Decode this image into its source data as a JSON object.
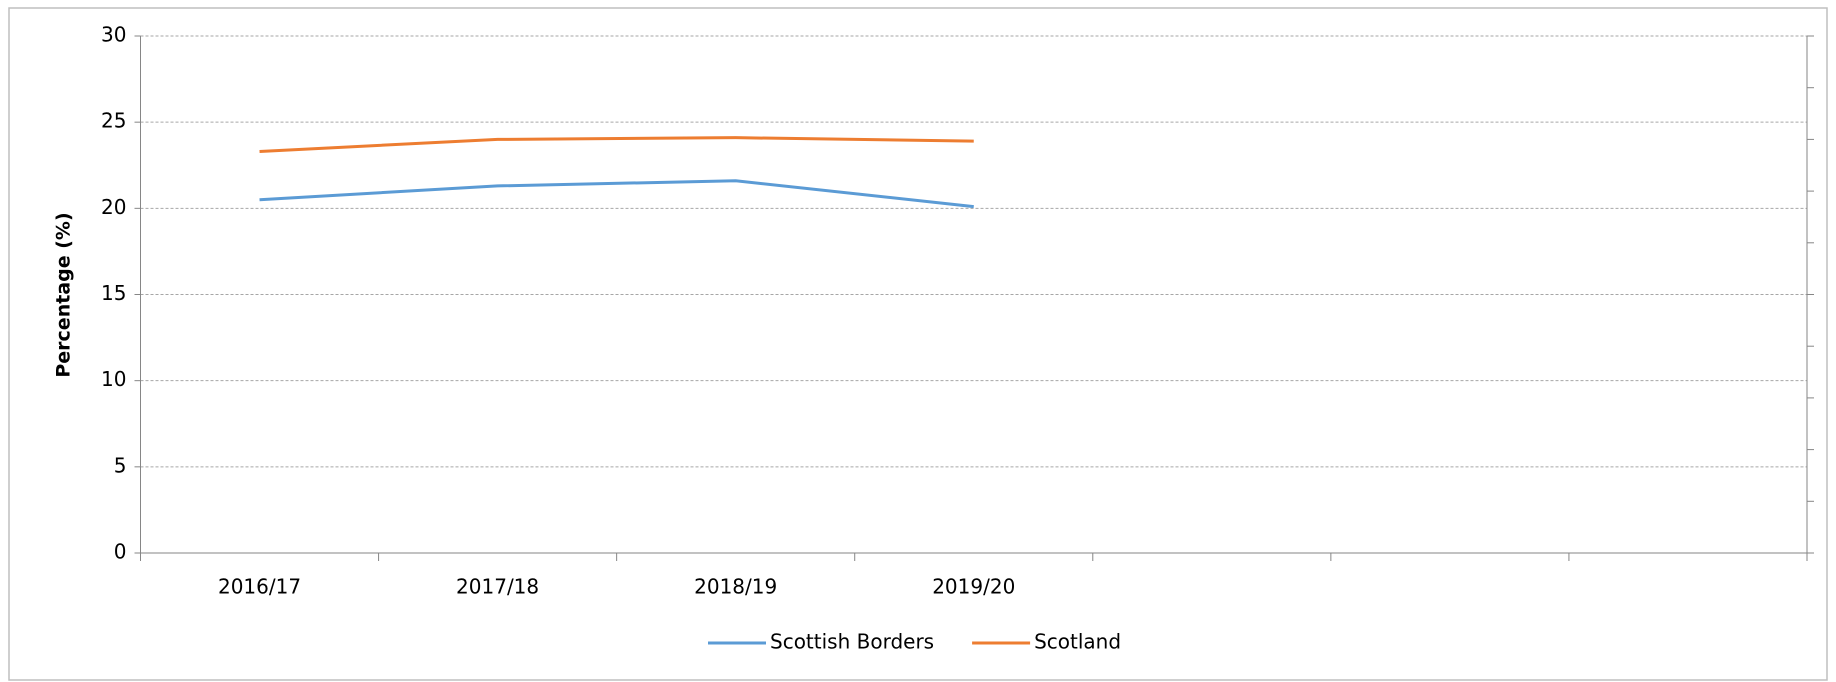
{
  "chart_data": {
    "type": "line",
    "y_label": "Percentage (%)",
    "categories": [
      "2016/17",
      "2017/18",
      "2018/19",
      "2019/20",
      null,
      null,
      null
    ],
    "series": [
      {
        "name": "Scottish Borders",
        "color": "#5b9bd5",
        "values": [
          20.5,
          21.3,
          21.6,
          20.1,
          null,
          null,
          null
        ]
      },
      {
        "name": "Scotland",
        "color": "#ed7d31",
        "values": [
          23.3,
          24.0,
          24.1,
          23.9,
          null,
          null,
          null
        ]
      }
    ],
    "ylim": [
      0,
      30
    ],
    "yticks": [
      0,
      5,
      10,
      15,
      20,
      25,
      30
    ],
    "grid": true,
    "legend": "bottom"
  }
}
